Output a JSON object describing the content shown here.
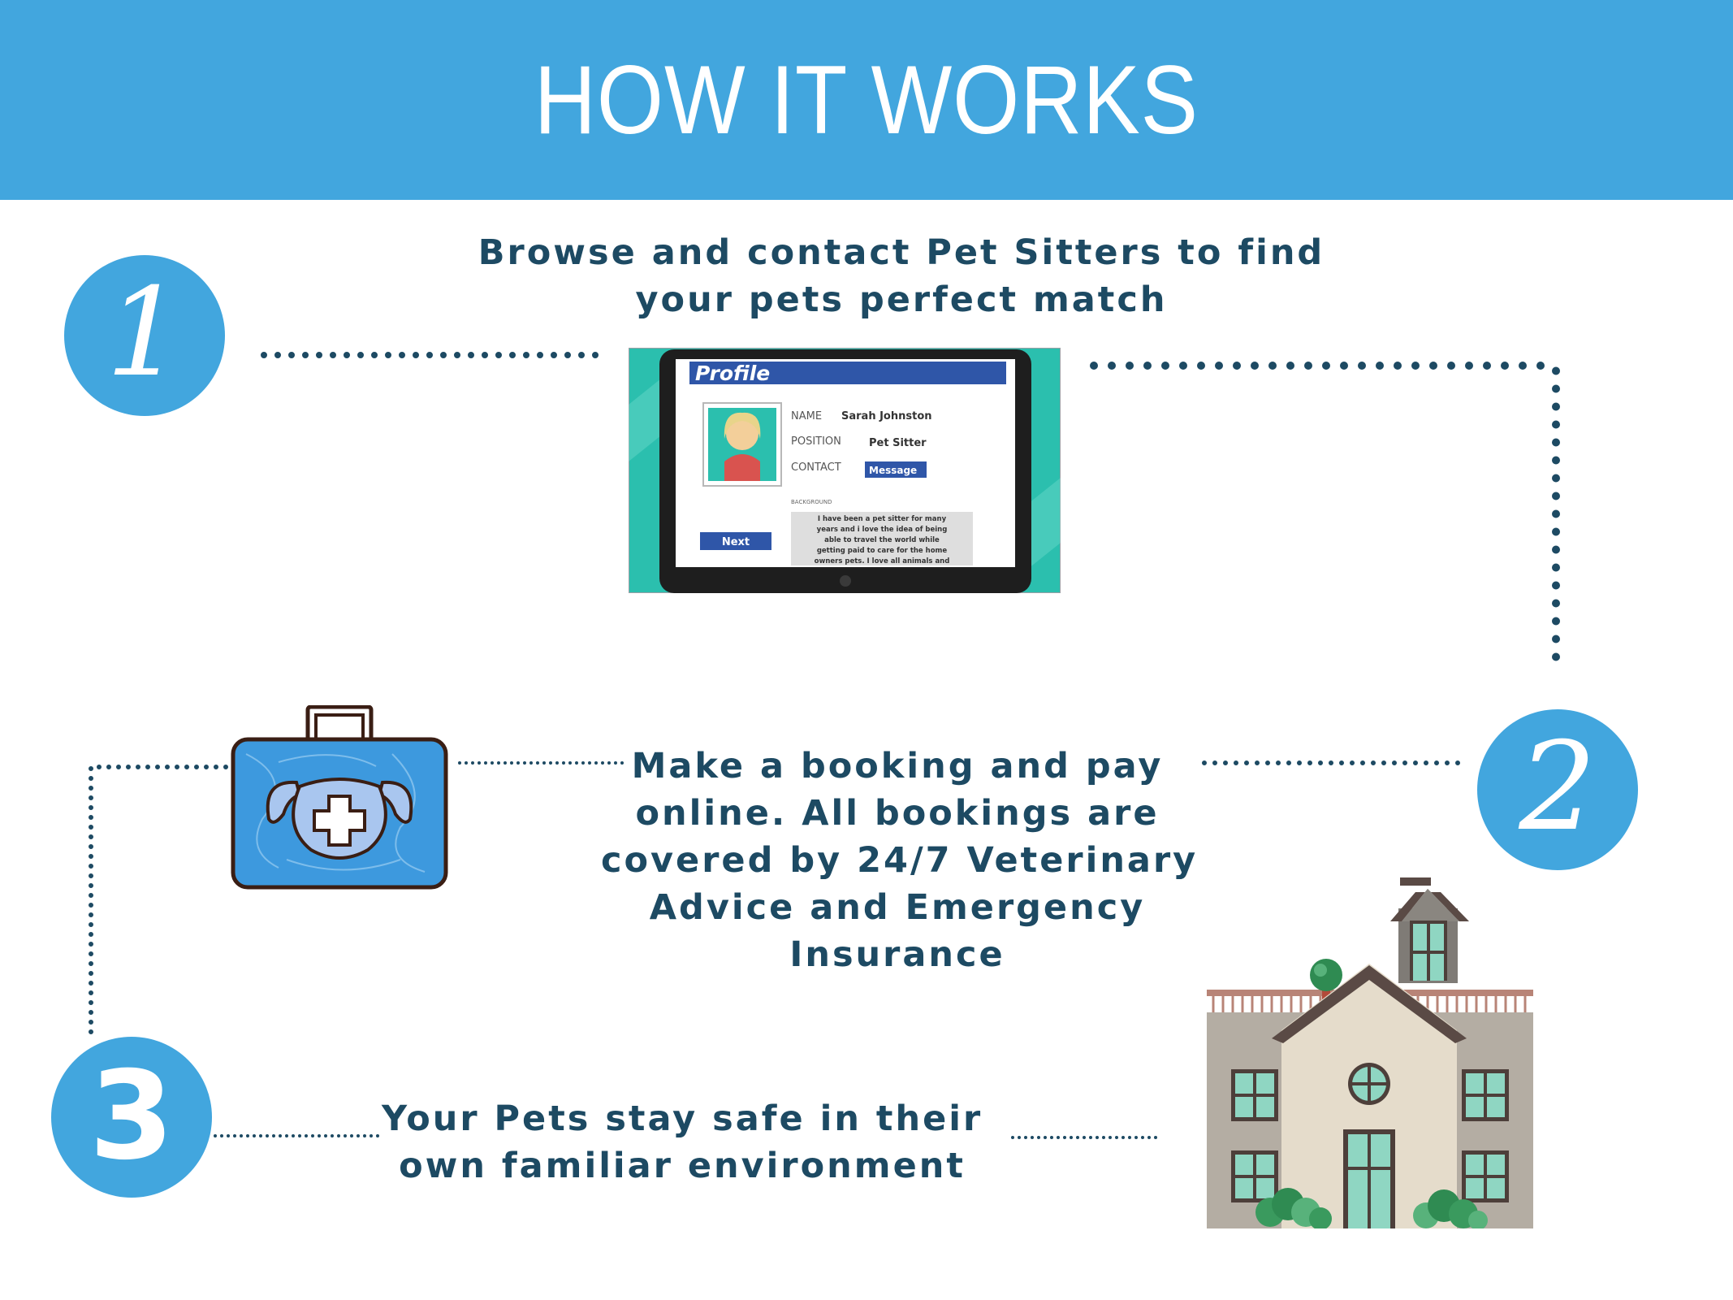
{
  "header": {
    "title": "HOW IT WORKS"
  },
  "steps": [
    {
      "number": "1",
      "lines": [
        "Browse and contact Pet Sitters to find",
        "your pets perfect match"
      ]
    },
    {
      "number": "2",
      "lines": [
        "Make a booking and pay",
        "online.  All bookings are",
        "covered by 24/7 Veterinary",
        "Advice and Emergency",
        "Insurance"
      ]
    },
    {
      "number": "3",
      "lines": [
        "Your Pets stay safe in their",
        "own familiar environment"
      ]
    }
  ],
  "profile_card": {
    "title": "Profile",
    "name_label": "NAME",
    "name_value": "Sarah Johnston",
    "position_label": "POSITION",
    "position_value": "Pet Sitter",
    "contact_label": "CONTACT",
    "message_button": "Message",
    "background_label": "BACKGROUND",
    "background_text": [
      "I have been a pet sitter for many",
      "years and i love the idea of being",
      "able to travel the world while",
      "getting paid to care for the home",
      "owners pets. I love all animals and"
    ],
    "next_button": "Next"
  },
  "icons": {
    "medical_kit": "dog-medical-kit-icon",
    "house": "house-icon",
    "tablet": "tablet-profile-icon"
  },
  "colors": {
    "header_bg": "#42a6de",
    "badge": "#42a6de",
    "text": "#1d4a63",
    "dots": "#1d4a63",
    "teal": "#2bbfae"
  }
}
